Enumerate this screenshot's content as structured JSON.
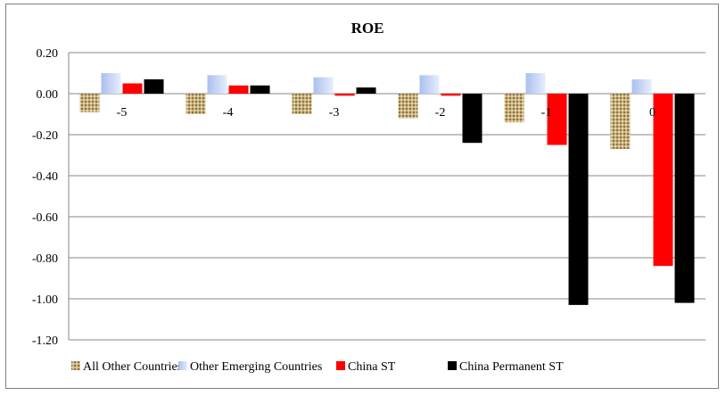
{
  "chart_data": {
    "type": "bar",
    "title": "ROE",
    "categories": [
      "-5",
      "-4",
      "-3",
      "-2",
      "-1",
      "0"
    ],
    "ylim": [
      -1.2,
      0.2
    ],
    "yticks": [
      0.2,
      0.0,
      -0.2,
      -0.4,
      -0.6,
      -0.8,
      -1.0,
      -1.2
    ],
    "ytick_labels": [
      "0.20",
      "0.00",
      "-0.20",
      "-0.40",
      "-0.60",
      "-0.80",
      "-1.00",
      "-1.20"
    ],
    "grid": true,
    "legend_position": "bottom",
    "series": [
      {
        "name": "All Other Countries",
        "color": "#c9b27e",
        "pattern": "burlap",
        "values": [
          -0.09,
          -0.1,
          -0.1,
          -0.12,
          -0.14,
          -0.27
        ]
      },
      {
        "name": "Other Emerging Countries",
        "color": "#c5d5f4",
        "pattern": "gradient",
        "values": [
          0.1,
          0.09,
          0.08,
          0.09,
          0.1,
          0.07
        ]
      },
      {
        "name": "China ST",
        "color": "#ff0000",
        "values": [
          0.05,
          0.04,
          -0.01,
          -0.01,
          -0.25,
          -0.84
        ]
      },
      {
        "name": "China Permanent ST",
        "color": "#000000",
        "values": [
          0.07,
          0.04,
          0.03,
          -0.24,
          -1.03,
          -1.02
        ]
      }
    ]
  }
}
